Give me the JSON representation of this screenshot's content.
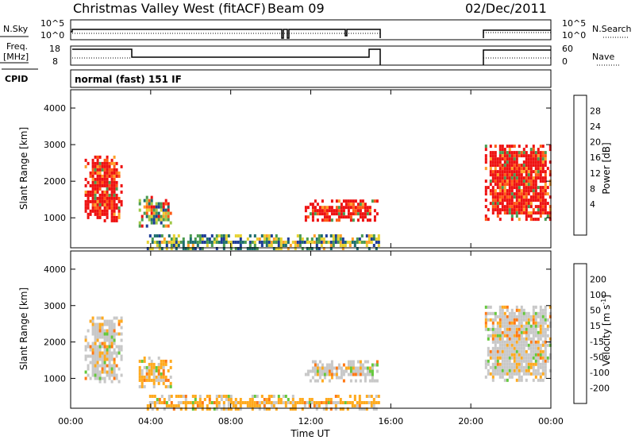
{
  "header": {
    "title": "Christmas Valley West (fitACF)",
    "beam": "Beam 09",
    "date": "02/Dec/2011"
  },
  "nsky_panel": {
    "left_label": "N.Sky",
    "right_label": "N.Search",
    "ticks": [
      "10^5",
      "10^0"
    ]
  },
  "freq_panel": {
    "left_label_1": "Freq.",
    "left_label_2": "[MHz]",
    "left_ticks": [
      "18",
      "8"
    ],
    "right_label": "Nave",
    "right_ticks": [
      "60",
      "0"
    ]
  },
  "cpid": {
    "label": "CPID",
    "text": "normal (fast) 151 IF"
  },
  "chart_data": [
    {
      "type": "heatmap",
      "title": "Power",
      "ylabel": "Slant Range [km]",
      "ylim": [
        180,
        4500
      ],
      "yticks": [
        "1000",
        "2000",
        "3000",
        "4000"
      ],
      "xlim": [
        0,
        24
      ],
      "colorbar": {
        "label": "Power [dB]",
        "ticks": [
          "28",
          "24",
          "20",
          "16",
          "12",
          "8",
          "4"
        ],
        "colors": [
          "#ee1111",
          "#ff5a14",
          "#ffa028",
          "#e6d232",
          "#a0c846",
          "#4b9b50",
          "#1e6e6e",
          "#1e3c96",
          "#1414ff"
        ]
      },
      "regions": [
        {
          "t0": 0.7,
          "t1": 2.5,
          "r0": 900,
          "r1": 2700,
          "level": "high"
        },
        {
          "t0": 3.4,
          "t1": 5.0,
          "r0": 800,
          "r1": 1600,
          "level": "mixed"
        },
        {
          "t0": 11.7,
          "t1": 15.3,
          "r0": 900,
          "r1": 1500,
          "level": "high"
        },
        {
          "t0": 3.8,
          "t1": 15.4,
          "r0": 200,
          "r1": 550,
          "level": "low"
        },
        {
          "t0": 20.7,
          "t1": 24.0,
          "r0": 950,
          "r1": 3000,
          "level": "high"
        }
      ]
    },
    {
      "type": "heatmap",
      "title": "Velocity",
      "ylabel": "Slant Range [km]",
      "ylim": [
        180,
        4500
      ],
      "yticks": [
        "1000",
        "2000",
        "3000",
        "4000"
      ],
      "xlim": [
        0,
        24
      ],
      "xticks": [
        "00:00",
        "04:00",
        "08:00",
        "12:00",
        "16:00",
        "20:00",
        "00:00"
      ],
      "xlabel": "Time UT",
      "colorbar": {
        "label": "Velocity [m s-1]",
        "ticks": [
          "200",
          "100",
          "50",
          "15",
          "-15",
          "-50",
          "-100",
          "-200"
        ],
        "colors": [
          "#1e32c8",
          "#3c78b4",
          "#329650",
          "#64c83c",
          "#c8c8c8",
          "#ffaa1e",
          "#ff7814",
          "#ff320a",
          "#e10000"
        ]
      },
      "regions": [
        {
          "t0": 0.7,
          "t1": 2.5,
          "r0": 900,
          "r1": 2700,
          "level": "near-zero"
        },
        {
          "t0": 3.4,
          "t1": 5.0,
          "r0": 800,
          "r1": 1600,
          "level": "negative"
        },
        {
          "t0": 11.7,
          "t1": 15.3,
          "r0": 900,
          "r1": 1500,
          "level": "near-zero"
        },
        {
          "t0": 3.8,
          "t1": 15.4,
          "r0": 200,
          "r1": 550,
          "level": "negative"
        },
        {
          "t0": 20.7,
          "t1": 24.0,
          "r0": 950,
          "r1": 3000,
          "level": "near-zero"
        }
      ]
    }
  ],
  "x_axis": {
    "ticks": [
      "00:00",
      "04:00",
      "08:00",
      "12:00",
      "16:00",
      "20:00",
      "00:00"
    ],
    "label": "Time UT"
  },
  "colorbar_power": {
    "label": "Power [dB]",
    "ticks": [
      "28",
      "24",
      "20",
      "16",
      "12",
      "8",
      "4"
    ]
  },
  "colorbar_velocity": {
    "label_main": "Velocity [m s",
    "label_sup": "-1",
    "label_end": "]",
    "ticks": [
      "200",
      "100",
      "50",
      "15",
      "-15",
      "-50",
      "-100",
      "-200"
    ]
  }
}
